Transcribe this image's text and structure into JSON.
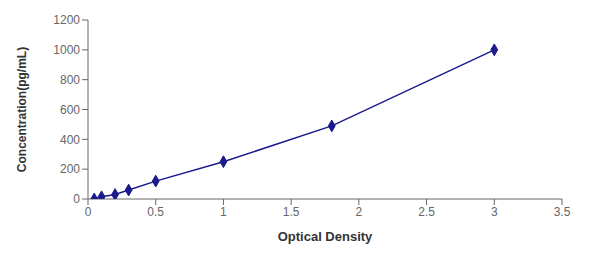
{
  "chart_data": {
    "type": "line",
    "x": [
      0.046,
      0.1,
      0.2,
      0.3,
      0.5,
      1.0,
      1.8,
      3.0
    ],
    "values": [
      0,
      15,
      30,
      60,
      120,
      250,
      490,
      1000
    ],
    "color": "#1a1a8c",
    "marker": "diamond",
    "xlabel": "Optical Density",
    "ylabel": "Concentration(pg/mL)",
    "xlim": [
      0,
      3.5
    ],
    "ylim": [
      0,
      1200
    ],
    "xticks": [
      0,
      0.5,
      1,
      1.5,
      2,
      2.5,
      3,
      3.5
    ],
    "yticks": [
      0,
      200,
      400,
      600,
      800,
      1000,
      1200
    ],
    "grid": false
  }
}
